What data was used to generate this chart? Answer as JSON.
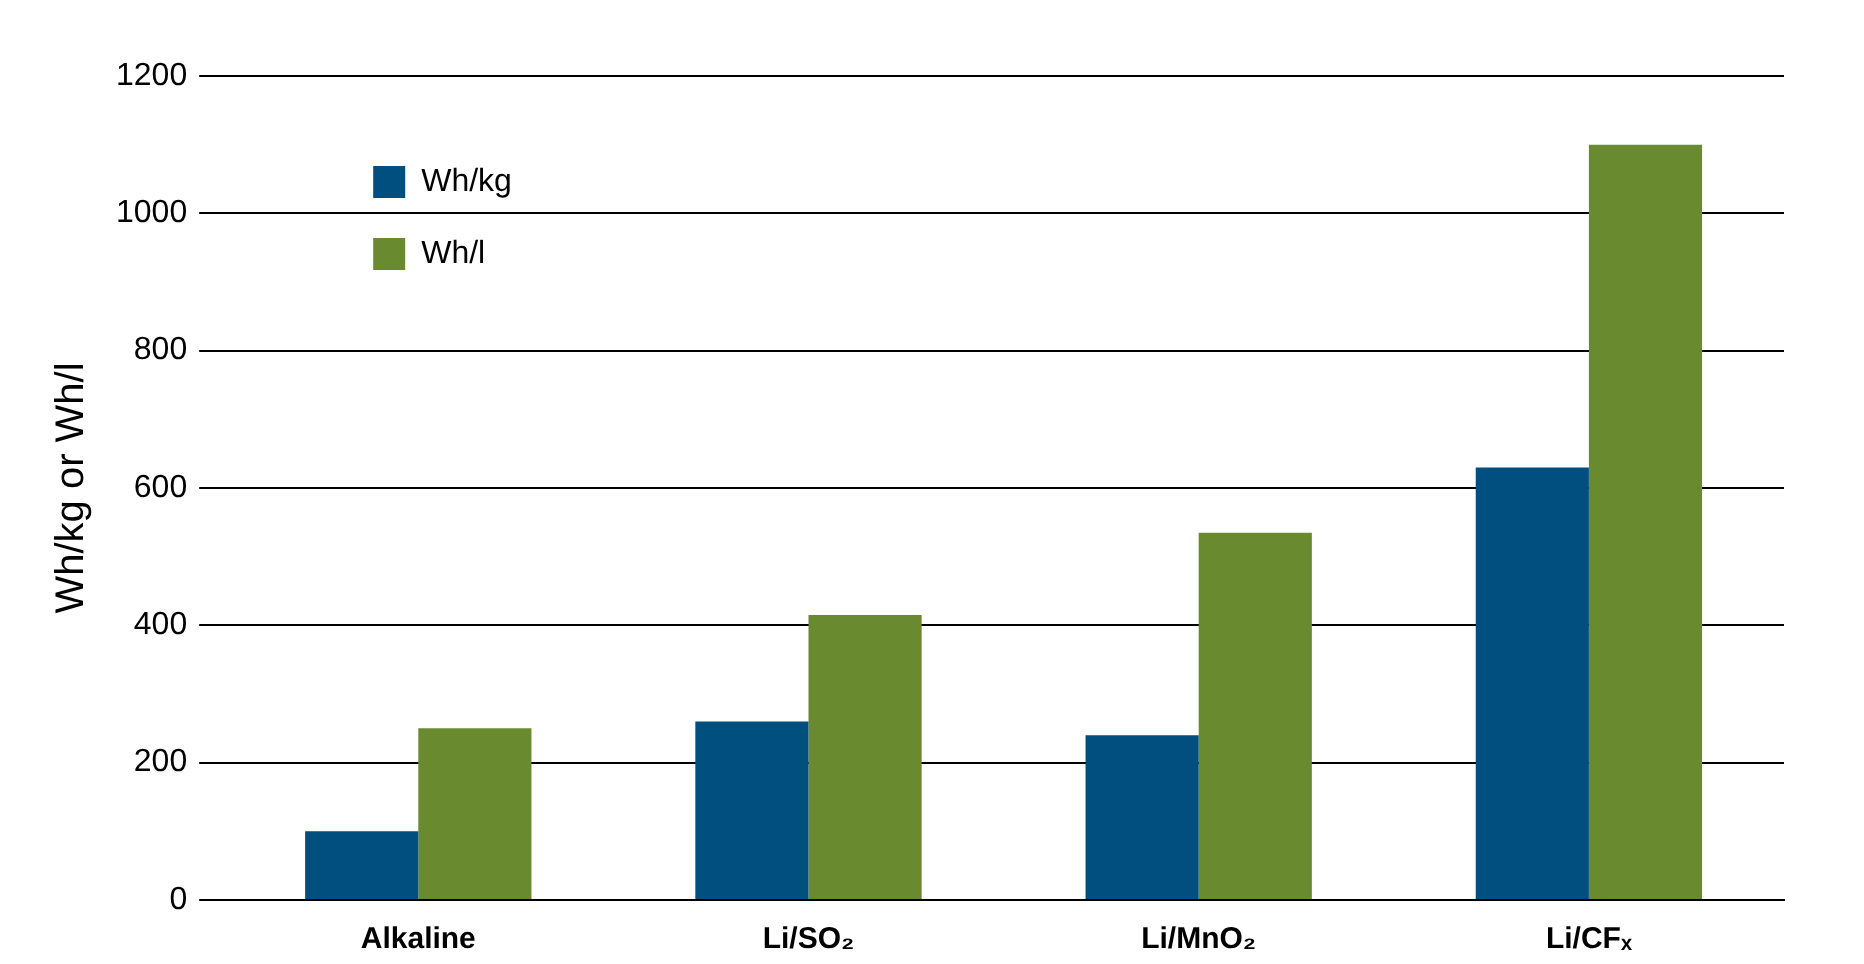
{
  "chart_data": {
    "type": "bar",
    "ylabel": "Wh/kg or Wh/l",
    "categories": [
      "Alkaline",
      "Li/SO₂",
      "Li/MnO₂",
      "Li/CFₓ"
    ],
    "series": [
      {
        "name": "Wh/kg",
        "color": "#004f7e",
        "values": [
          100,
          260,
          240,
          630
        ]
      },
      {
        "name": "Wh/l",
        "color": "#6a8a30",
        "values": [
          250,
          415,
          535,
          1100
        ]
      }
    ],
    "ylim": [
      0,
      1200
    ],
    "yticks": [
      0,
      200,
      400,
      600,
      800,
      1000,
      1200
    ],
    "grid": "y",
    "legend": "top left"
  }
}
